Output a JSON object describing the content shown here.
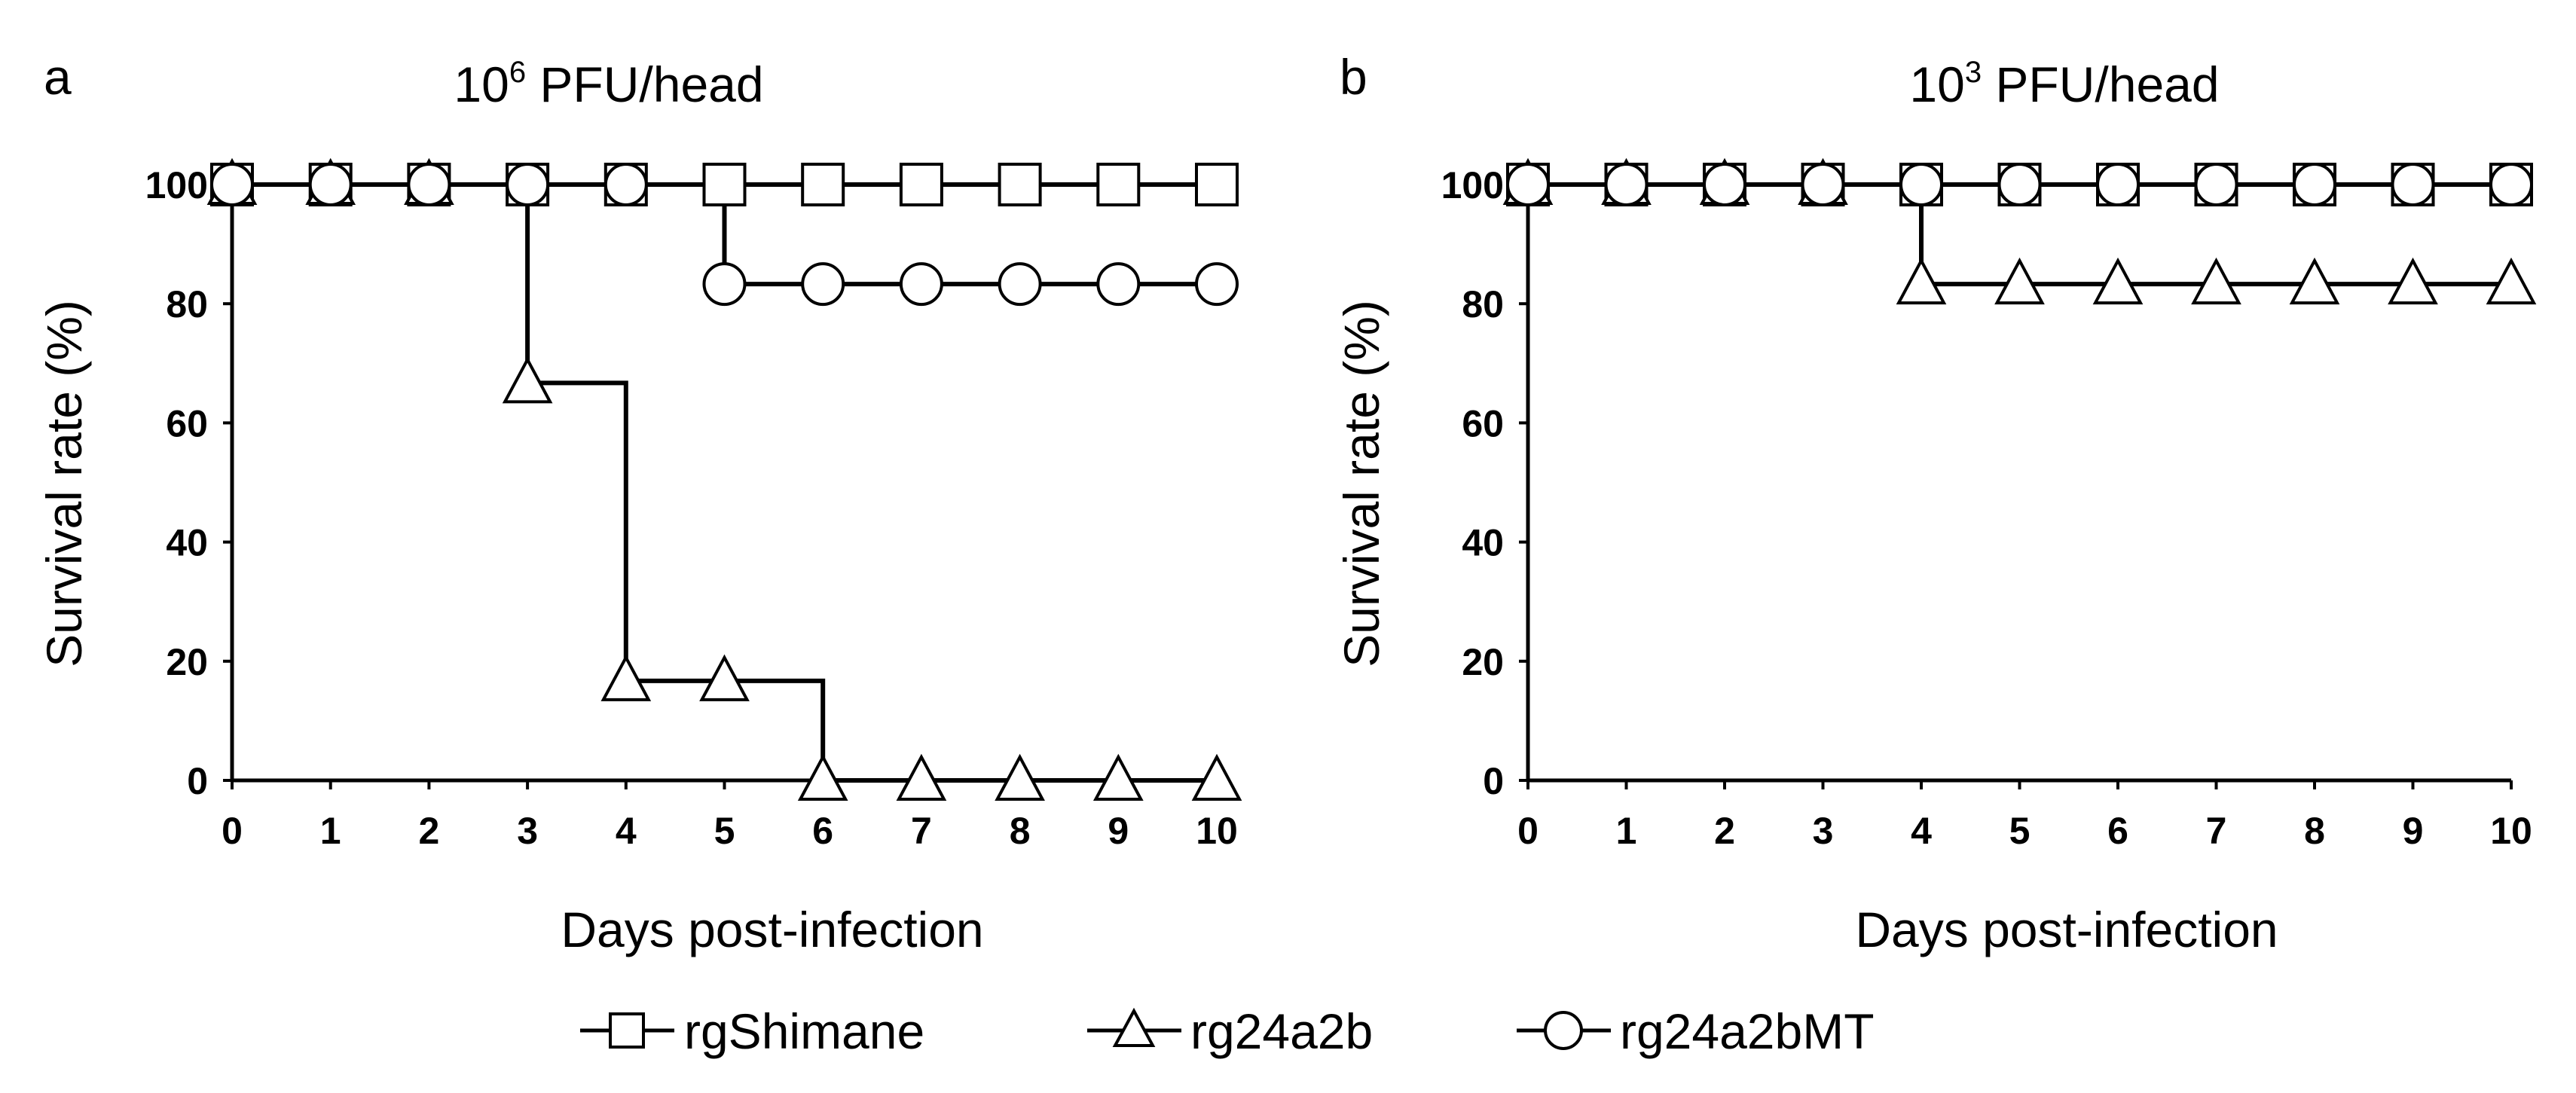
{
  "legend": [
    {
      "name": "rgShimane",
      "marker": "square"
    },
    {
      "name": "rg24a2b",
      "marker": "triangle"
    },
    {
      "name": "rg24a2bMT",
      "marker": "circle"
    }
  ],
  "chart_data": [
    {
      "panel": "a",
      "type": "line",
      "title_base": "10",
      "title_sup": "6",
      "title_rest": " PFU/head",
      "xlabel": "Days post-infection",
      "ylabel": "Survival rate (%)",
      "xlim": [
        0,
        10
      ],
      "ylim": [
        0,
        100
      ],
      "x_ticks": [
        "0",
        "1",
        "2",
        "3",
        "4",
        "5",
        "6",
        "7",
        "8",
        "9",
        "10"
      ],
      "y_ticks": [
        "0",
        "20",
        "40",
        "60",
        "80",
        "100"
      ],
      "step": true,
      "grid": false,
      "series": [
        {
          "name": "rgShimane",
          "marker": "square",
          "x": [
            0,
            1,
            2,
            3,
            4,
            5,
            6,
            7,
            8,
            9,
            10
          ],
          "y": [
            100,
            100,
            100,
            100,
            100,
            100,
            100,
            100,
            100,
            100,
            100
          ]
        },
        {
          "name": "rg24a2b",
          "marker": "triangle",
          "x": [
            0,
            1,
            2,
            3,
            4,
            5,
            6,
            7,
            8,
            9,
            10
          ],
          "y": [
            100,
            100,
            100,
            66.7,
            16.7,
            16.7,
            0,
            0,
            0,
            0,
            0
          ]
        },
        {
          "name": "rg24a2bMT",
          "marker": "circle",
          "x": [
            0,
            1,
            2,
            3,
            4,
            5,
            6,
            7,
            8,
            9,
            10
          ],
          "y": [
            100,
            100,
            100,
            100,
            100,
            83.3,
            83.3,
            83.3,
            83.3,
            83.3,
            83.3
          ]
        }
      ]
    },
    {
      "panel": "b",
      "type": "line",
      "title_base": "10",
      "title_sup": "3",
      "title_rest": " PFU/head",
      "xlabel": "Days post-infection",
      "ylabel": "Survival rate (%)",
      "xlim": [
        0,
        10
      ],
      "ylim": [
        0,
        100
      ],
      "x_ticks": [
        "0",
        "1",
        "2",
        "3",
        "4",
        "5",
        "6",
        "7",
        "8",
        "9",
        "10"
      ],
      "y_ticks": [
        "0",
        "20",
        "40",
        "60",
        "80",
        "100"
      ],
      "step": true,
      "grid": false,
      "series": [
        {
          "name": "rgShimane",
          "marker": "square",
          "x": [
            0,
            1,
            2,
            3,
            4,
            5,
            6,
            7,
            8,
            9,
            10
          ],
          "y": [
            100,
            100,
            100,
            100,
            100,
            100,
            100,
            100,
            100,
            100,
            100
          ]
        },
        {
          "name": "rg24a2b",
          "marker": "triangle",
          "x": [
            0,
            1,
            2,
            3,
            4,
            5,
            6,
            7,
            8,
            9,
            10
          ],
          "y": [
            100,
            100,
            100,
            100,
            83.3,
            83.3,
            83.3,
            83.3,
            83.3,
            83.3,
            83.3
          ]
        },
        {
          "name": "rg24a2bMT",
          "marker": "circle",
          "x": [
            0,
            1,
            2,
            3,
            4,
            5,
            6,
            7,
            8,
            9,
            10
          ],
          "y": [
            100,
            100,
            100,
            100,
            100,
            100,
            100,
            100,
            100,
            100,
            100
          ]
        }
      ]
    }
  ]
}
